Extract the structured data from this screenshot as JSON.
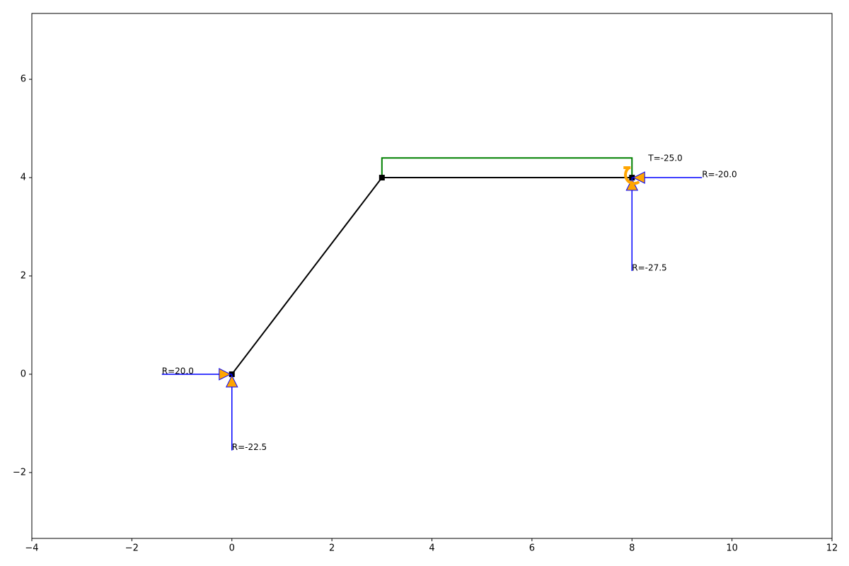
{
  "chart_data": {
    "type": "frame",
    "xlim": [
      -4,
      12
    ],
    "ylim": [
      -3.34,
      7.34
    ],
    "xticks": [
      {
        "value": -4,
        "label": "−4"
      },
      {
        "value": -2,
        "label": "−2"
      },
      0,
      2,
      4,
      6,
      8,
      10,
      12
    ],
    "yticks": [
      {
        "value": -2,
        "label": "−2"
      },
      0,
      2,
      4,
      6
    ],
    "nodes": {
      "x": [
        0,
        3,
        8
      ],
      "y": [
        0,
        4,
        4
      ]
    },
    "members": [
      {
        "x": [
          0,
          3
        ],
        "y": [
          0,
          4
        ]
      },
      {
        "x": [
          3,
          8
        ],
        "y": [
          4,
          4
        ]
      }
    ],
    "member_color": "#000000",
    "diagram": {
      "x": [
        3,
        3,
        8,
        8
      ],
      "y": [
        4,
        4.4,
        4.4,
        4
      ],
      "color": "#008000"
    },
    "reaction_color": "#0000ff",
    "support_color": "#ffa500",
    "reactions": [
      {
        "label": "R=20.0",
        "x": [
          -1.4,
          0
        ],
        "y": [
          0,
          0
        ]
      },
      {
        "label": "R=-22.5",
        "x": [
          0,
          0
        ],
        "y": [
          -1.55,
          0
        ]
      },
      {
        "label": "R=-20.0",
        "x": [
          9.4,
          8
        ],
        "y": [
          4,
          4
        ]
      },
      {
        "label": "R=-27.5",
        "x": [
          8,
          8
        ],
        "y": [
          2.1,
          4
        ]
      }
    ],
    "moment": {
      "label": "T=-25.0",
      "x": 8,
      "y": 4
    }
  }
}
